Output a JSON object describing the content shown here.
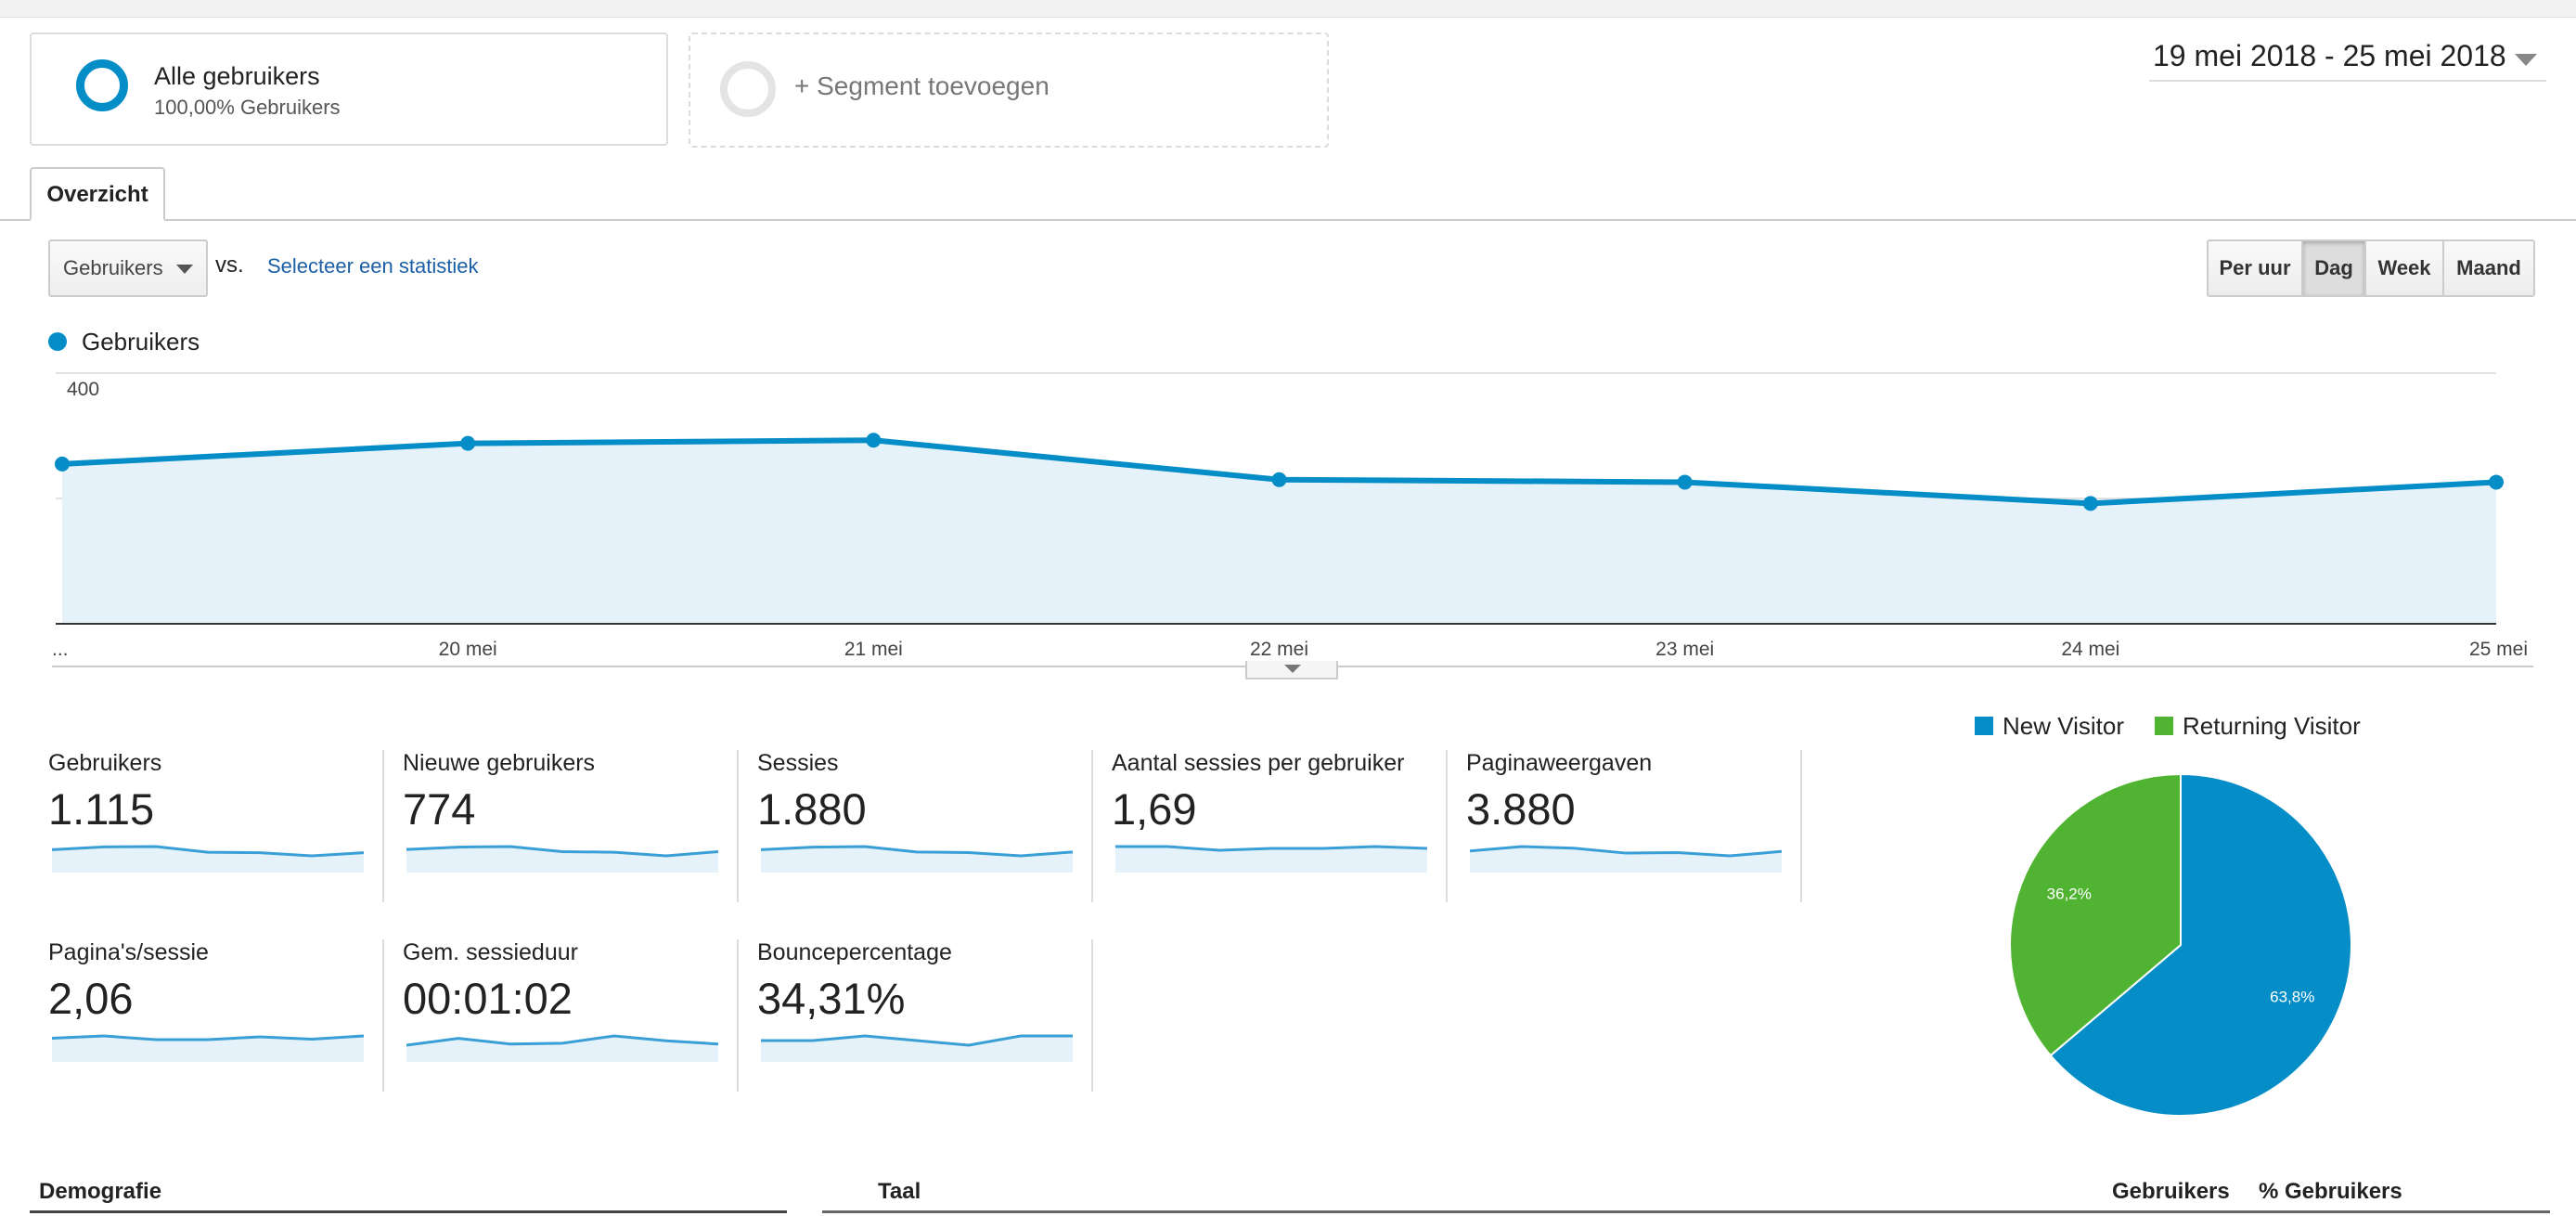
{
  "segments": {
    "all_users": {
      "title": "Alle gebruikers",
      "subtitle": "100,00% Gebruikers"
    },
    "add_segment": "+ Segment toevoegen"
  },
  "date_range": "19 mei 2018 - 25 mei 2018",
  "tab": "Overzicht",
  "controls": {
    "metric_select": "Gebruikers",
    "vs": "vs.",
    "select_stat": "Selecteer een statistiek",
    "granularity": [
      "Per uur",
      "Dag",
      "Week",
      "Maand"
    ],
    "active_granularity": "Dag"
  },
  "colors": {
    "accent": "#058dc7",
    "green": "#50b432",
    "link": "#1c5fa6"
  },
  "chart_data": {
    "type": "area",
    "title": "",
    "series": [
      {
        "name": "Gebruikers",
        "values": [
          255,
          288,
          293,
          230,
          226,
          192,
          226
        ]
      }
    ],
    "x": [
      "19 mei",
      "20 mei",
      "21 mei",
      "22 mei",
      "23 mei",
      "24 mei",
      "25 mei"
    ],
    "x_tick_labels": [
      "...",
      "20 mei",
      "21 mei",
      "22 mei",
      "23 mei",
      "24 mei",
      "25 mei"
    ],
    "y_ticks": [
      "400",
      "200"
    ],
    "ylim": [
      0,
      400
    ],
    "grid": true
  },
  "metrics": [
    {
      "label": "Gebruikers",
      "value": "1.115",
      "trend": [
        258,
        286,
        290,
        232,
        228,
        196,
        228
      ]
    },
    {
      "label": "Nieuwe gebruikers",
      "value": "774",
      "trend": [
        172,
        195,
        200,
        152,
        146,
        112,
        152
      ]
    },
    {
      "label": "Sessies",
      "value": "1.880",
      "trend": [
        286,
        312,
        318,
        262,
        256,
        222,
        262
      ]
    },
    {
      "label": "Aantal sessies per gebruiker",
      "value": "1,69",
      "trend": [
        1.7,
        1.7,
        1.68,
        1.69,
        1.69,
        1.7,
        1.69
      ]
    },
    {
      "label": "Paginaweergaven",
      "value": "3.880",
      "trend": [
        560,
        640,
        610,
        520,
        530,
        470,
        550
      ]
    },
    {
      "label": "Pagina's/sessie",
      "value": "2,06",
      "trend": [
        2.05,
        2.1,
        2.02,
        2.02,
        2.08,
        2.03,
        2.1
      ]
    },
    {
      "label": "Gem. sessieduur",
      "value": "00:01:02",
      "trend": [
        55,
        72,
        58,
        60,
        78,
        66,
        58
      ]
    },
    {
      "label": "Bouncepercentage",
      "value": "34,31%",
      "trend": [
        34,
        34,
        35,
        34,
        33,
        35,
        35
      ]
    }
  ],
  "pie": {
    "legend": [
      "New Visitor",
      "Returning Visitor"
    ],
    "values": [
      63.8,
      36.2
    ],
    "labels": [
      "63,8%",
      "36,2%"
    ]
  },
  "bottom": {
    "demografie": "Demografie",
    "taal": "Taal",
    "col_users": "Gebruikers",
    "col_pct": "% Gebruikers"
  }
}
